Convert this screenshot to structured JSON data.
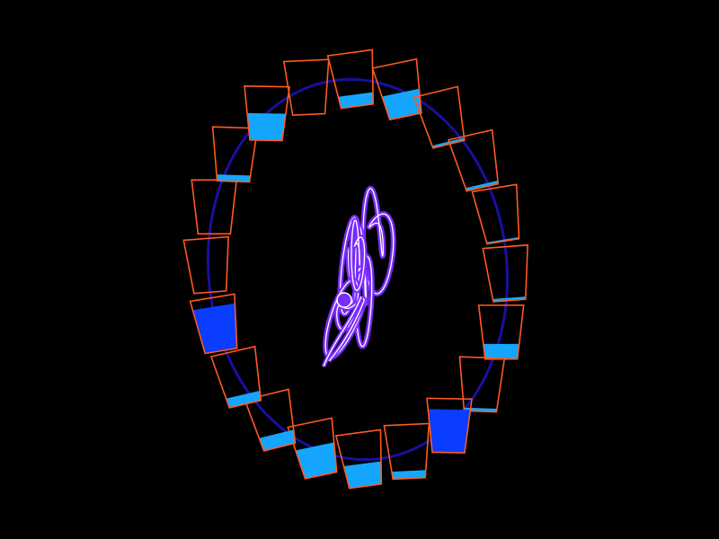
{
  "scene": {
    "background": "#000000",
    "wheel_color": "#1a0fa0",
    "cup_outline_color": "#ff5a1f",
    "water_light_color": "#14a6ff",
    "water_deep_color": "#0a3dff",
    "attractor_glow_color": "#7b2cff",
    "attractor_core_color": "#ffffff",
    "cup_count": 20,
    "cup_fill_levels": [
      0.22,
      0.45,
      0.05,
      0.06,
      0.03,
      0.05,
      0.28,
      0.06,
      0.8,
      0.14,
      0.42,
      0.55,
      0.25,
      0.18,
      0.83,
      0.0,
      0.0,
      0.12,
      0.5,
      0.0
    ],
    "cup_icon": "cup-icon",
    "wheel_icon": "waterwheel-ring-icon",
    "attractor_icon": "chaotic-trajectory-icon",
    "state_marker_icon": "state-marker-icon"
  }
}
